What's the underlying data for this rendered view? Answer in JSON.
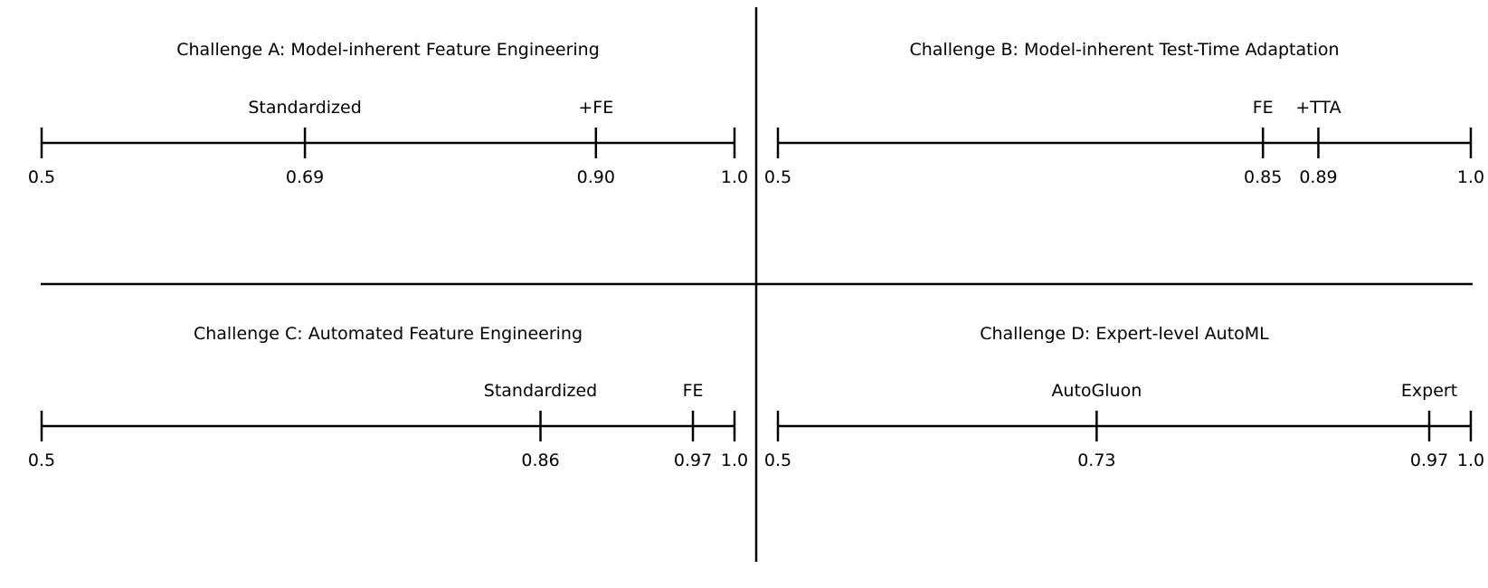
{
  "panels": [
    {
      "title": "Challenge A: Model-inherent Feature Engineering",
      "axis": {
        "min": 0.5,
        "max": 1.0,
        "min_label": "0.5",
        "max_label": "1.0"
      },
      "markers": [
        {
          "label": "Standardized",
          "value": 0.69,
          "value_label": "0.69"
        },
        {
          "label": "+FE",
          "value": 0.9,
          "value_label": "0.90"
        }
      ]
    },
    {
      "title": "Challenge B: Model-inherent Test-Time Adaptation",
      "axis": {
        "min": 0.5,
        "max": 1.0,
        "min_label": "0.5",
        "max_label": "1.0"
      },
      "markers": [
        {
          "label": "FE",
          "value": 0.85,
          "value_label": "0.85"
        },
        {
          "label": "+TTA",
          "value": 0.89,
          "value_label": "0.89"
        }
      ]
    },
    {
      "title": "Challenge C: Automated Feature Engineering",
      "axis": {
        "min": 0.5,
        "max": 1.0,
        "min_label": "0.5",
        "max_label": "1.0"
      },
      "markers": [
        {
          "label": "Standardized",
          "value": 0.86,
          "value_label": "0.86"
        },
        {
          "label": "FE",
          "value": 0.97,
          "value_label": "0.97"
        }
      ]
    },
    {
      "title": "Challenge D: Expert-level AutoML",
      "axis": {
        "min": 0.5,
        "max": 1.0,
        "min_label": "0.5",
        "max_label": "1.0"
      },
      "markers": [
        {
          "label": "AutoGluon",
          "value": 0.73,
          "value_label": "0.73"
        },
        {
          "label": "Expert",
          "value": 0.97,
          "value_label": "0.97"
        }
      ]
    }
  ]
}
